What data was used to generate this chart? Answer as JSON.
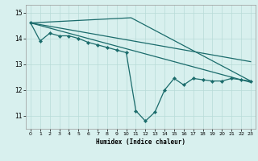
{
  "xlabel": "Humidex (Indice chaleur)",
  "xlim": [
    -0.5,
    23.5
  ],
  "ylim": [
    10.5,
    15.3
  ],
  "xticks": [
    0,
    1,
    2,
    3,
    4,
    5,
    6,
    7,
    8,
    9,
    10,
    11,
    12,
    13,
    14,
    15,
    16,
    17,
    18,
    19,
    20,
    21,
    22,
    23
  ],
  "yticks": [
    11,
    12,
    13,
    14,
    15
  ],
  "bg_color": "#d8f0ee",
  "line_color": "#1a6b6b",
  "grid_color": "#b8dbd8",
  "s1x": [
    0,
    1,
    2,
    3,
    4,
    5,
    6,
    7,
    8,
    9,
    10,
    11,
    12,
    13,
    14,
    15,
    16,
    17,
    18,
    19,
    20,
    21,
    22,
    23
  ],
  "s1y": [
    14.6,
    13.9,
    14.2,
    14.1,
    14.1,
    14.0,
    13.85,
    13.75,
    13.65,
    13.55,
    13.45,
    11.2,
    10.8,
    11.15,
    12.0,
    12.45,
    12.2,
    12.45,
    12.4,
    12.35,
    12.35,
    12.45,
    12.4,
    12.35
  ],
  "s2x": [
    0,
    10.5,
    23
  ],
  "s2y": [
    14.6,
    14.8,
    12.35
  ],
  "s3x": [
    0,
    23
  ],
  "s3y": [
    14.6,
    13.1
  ],
  "s4x": [
    0,
    23
  ],
  "s4y": [
    14.6,
    12.3
  ]
}
